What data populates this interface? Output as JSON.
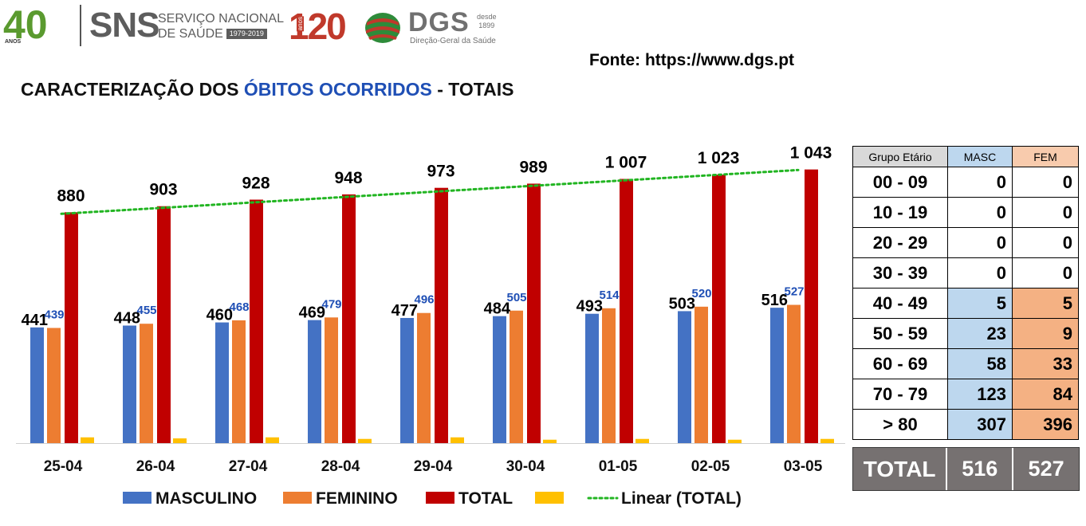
{
  "header": {
    "logo_40": "40",
    "logo_40_sub": "ANOS",
    "sns": "SNS",
    "sns_line1": "SERVIÇO NACIONAL",
    "sns_line2": "DE SAÚDE",
    "sns_years": "1979-2019",
    "dgs_120": "120",
    "dgs_120_sub": "anos",
    "dgs": "DGS",
    "dgs_since_1": "desde",
    "dgs_since_2": "1899",
    "dgs_sub": "Direção-Geral da Saúde"
  },
  "source": "Fonte: https://www.dgs.pt",
  "title": {
    "part1": "CARACTERIZAÇÃO DOS ",
    "part2": "ÓBITOS OCORRIDOS",
    "part3": " - TOTAIS"
  },
  "colors": {
    "masculino": "#4472c4",
    "feminino": "#ed7d31",
    "total": "#c00000",
    "yellow": "#ffc000",
    "trend": "#22b522",
    "label_blue": "#1f4fb5"
  },
  "chart_data": {
    "type": "bar",
    "categories": [
      "25-04",
      "26-04",
      "27-04",
      "28-04",
      "29-04",
      "30-04",
      "01-05",
      "02-05",
      "03-05"
    ],
    "series": [
      {
        "name": "MASCULINO",
        "values": [
          441,
          448,
          460,
          469,
          477,
          484,
          493,
          503,
          516
        ]
      },
      {
        "name": "FEMININO",
        "values": [
          439,
          455,
          468,
          479,
          496,
          505,
          514,
          520,
          527
        ]
      },
      {
        "name": "TOTAL",
        "values": [
          880,
          903,
          928,
          948,
          973,
          989,
          1007,
          1023,
          1043
        ]
      },
      {
        "name": "",
        "values": [
          22,
          18,
          22,
          16,
          22,
          13,
          16,
          13,
          16
        ]
      }
    ],
    "total_labels": [
      "880",
      "903",
      "928",
      "948",
      "973",
      "989",
      "1 007",
      "1 023",
      "1 043"
    ],
    "trend": {
      "name": "Linear (TOTAL)",
      "start": 880,
      "end": 1047
    },
    "ylim": [
      0,
      1100
    ],
    "legend": [
      "MASCULINO",
      "FEMININO",
      "TOTAL",
      "",
      "Linear (TOTAL)"
    ],
    "legend_position": "bottom"
  },
  "age_table": {
    "headers": [
      "Grupo Etário",
      "MASC",
      "FEM"
    ],
    "rows": [
      {
        "group": "00 - 09",
        "masc": "0",
        "fem": "0"
      },
      {
        "group": "10 - 19",
        "masc": "0",
        "fem": "0"
      },
      {
        "group": "20 - 29",
        "masc": "0",
        "fem": "0"
      },
      {
        "group": "30 - 39",
        "masc": "0",
        "fem": "0"
      },
      {
        "group": "40 - 49",
        "masc": "5",
        "fem": "5"
      },
      {
        "group": "50 - 59",
        "masc": "23",
        "fem": "9"
      },
      {
        "group": "60 - 69",
        "masc": "58",
        "fem": "33"
      },
      {
        "group": "70 - 79",
        "masc": "123",
        "fem": "84"
      },
      {
        "group": "> 80",
        "masc": "307",
        "fem": "396"
      }
    ],
    "total": {
      "label": "TOTAL",
      "masc": "516",
      "fem": "527"
    }
  }
}
